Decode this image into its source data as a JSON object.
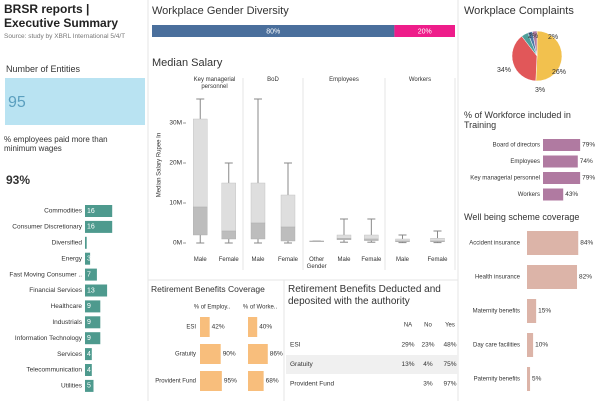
{
  "header": {
    "title": "BRSR reports | Executive Summary",
    "subtitle": "Source: study by XBRL International 5/4/T"
  },
  "gender": {
    "title": "Workplace Gender Diversity",
    "segments": [
      {
        "value": 80,
        "label": "80%",
        "color": "#4a6f9c"
      },
      {
        "value": 20,
        "label": "20%",
        "color": "#ee1d8a"
      }
    ]
  },
  "complaints": {
    "title": "Workplace Complaints",
    "slices": [
      {
        "value": 34,
        "label": "34%",
        "color": "#f2c14e"
      },
      {
        "value": 26,
        "label": "26%",
        "color": "#e15759"
      },
      {
        "value": 3,
        "label": "3%",
        "color": "#4e9f9a"
      },
      {
        "value": 2,
        "label": "2%",
        "color": "#4e79a7"
      },
      {
        "value": 2,
        "label": "2%",
        "color": "#b07aa1"
      }
    ]
  },
  "entities": {
    "title": "Number of Entities",
    "value": 95
  },
  "wages": {
    "title": "% employees paid more than minimum wages",
    "value": 93,
    "label": "93%"
  },
  "sectors": {
    "color": "#4e9a8e",
    "items": [
      {
        "name": "Commodities",
        "value": 16
      },
      {
        "name": "Consumer Discretionary",
        "value": 16
      },
      {
        "name": "Diversified",
        "value": 1
      },
      {
        "name": "Energy",
        "value": 3
      },
      {
        "name": "Fast Moving Consumer ..",
        "value": 7
      },
      {
        "name": "Financial Services",
        "value": 13
      },
      {
        "name": "Healthcare",
        "value": 9
      },
      {
        "name": "Industrials",
        "value": 9
      },
      {
        "name": "Information Technology",
        "value": 9
      },
      {
        "name": "Services",
        "value": 4
      },
      {
        "name": "Telecommunication",
        "value": 4
      },
      {
        "name": "Utilities",
        "value": 5
      }
    ]
  },
  "salary": {
    "title": "Median Salary",
    "axis_label": "Median Salary Rupee In",
    "ylim": [
      -1,
      40
    ],
    "yticks": [
      {
        "value": 0,
        "label": "0M"
      },
      {
        "value": 10,
        "label": "10M"
      },
      {
        "value": 20,
        "label": "20M"
      },
      {
        "value": 30,
        "label": "30M"
      }
    ],
    "panels": [
      {
        "name": "Key managerial personnel",
        "groups": [
          {
            "name": "Male",
            "min": 0,
            "q1": 2,
            "median": 9,
            "q3": 31,
            "max": 36
          },
          {
            "name": "Female",
            "min": 0,
            "q1": 1,
            "median": 3,
            "q3": 15,
            "max": 20
          }
        ]
      },
      {
        "name": "BoD",
        "groups": [
          {
            "name": "Male",
            "min": 0,
            "q1": 1,
            "median": 5,
            "q3": 15,
            "max": 36
          },
          {
            "name": "Female",
            "min": 0,
            "q1": 0.5,
            "median": 4,
            "q3": 12,
            "max": 20
          }
        ]
      },
      {
        "name": "Employees",
        "groups": [
          {
            "name": "Other Gender",
            "min": 0.5,
            "q1": 0.5,
            "median": 0.5,
            "q3": 0.5,
            "max": 0.5
          },
          {
            "name": "Male",
            "min": 0.2,
            "q1": 0.8,
            "median": 1.2,
            "q3": 2,
            "max": 6
          },
          {
            "name": "Female",
            "min": 0.2,
            "q1": 0.6,
            "median": 1,
            "q3": 2,
            "max": 6
          }
        ]
      },
      {
        "name": "Workers",
        "groups": [
          {
            "name": "Male",
            "min": 0.1,
            "q1": 0.3,
            "median": 0.5,
            "q3": 1,
            "max": 2
          },
          {
            "name": "Female",
            "min": 0.1,
            "q1": 0.3,
            "median": 0.5,
            "q3": 1.2,
            "max": 3
          }
        ]
      }
    ]
  },
  "training": {
    "title": "% of Workforce included in Training",
    "color": "#b07aa1",
    "items": [
      {
        "name": "Board of directors",
        "value": 79,
        "label": "79%"
      },
      {
        "name": "Employees",
        "value": 74,
        "label": "74%"
      },
      {
        "name": "Key managerial personnel",
        "value": 79,
        "label": "79%"
      },
      {
        "name": "Workers",
        "value": 43,
        "label": "43%"
      }
    ]
  },
  "wellbeing": {
    "title": "Well being scheme coverage",
    "color": "#dcb4a8",
    "items": [
      {
        "name": "Accident insurance",
        "value": 84,
        "label": "84%"
      },
      {
        "name": "Health insurance",
        "value": 82,
        "label": "82%"
      },
      {
        "name": "Maternity benefits",
        "value": 15,
        "label": "15%"
      },
      {
        "name": "Day care facilities",
        "value": 10,
        "label": "10%"
      },
      {
        "name": "Paternity benefits",
        "value": 5,
        "label": "5%"
      }
    ]
  },
  "retirement_coverage": {
    "title": "Retirement Benefits Coverage",
    "color": "#f8be7c",
    "columns": [
      "% of Employ..",
      "% of Worke.."
    ],
    "rows": [
      {
        "name": "ESI",
        "values": [
          42,
          40
        ],
        "labels": [
          "42%",
          "40%"
        ]
      },
      {
        "name": "Gratuity",
        "values": [
          90,
          86
        ],
        "labels": [
          "90%",
          "86%"
        ]
      },
      {
        "name": "Provident Fund",
        "values": [
          95,
          68
        ],
        "labels": [
          "95%",
          "68%"
        ]
      }
    ]
  },
  "retirement_deducted": {
    "title": "Retirement Benefits Deducted and deposited with the authority",
    "columns": [
      "NA",
      "No",
      "Yes"
    ],
    "rows": [
      {
        "name": "ESI",
        "cells": [
          "29%",
          "23%",
          "48%"
        ]
      },
      {
        "name": "Gratuity",
        "cells": [
          "13%",
          "4%",
          "75%"
        ]
      },
      {
        "name": "Provident Fund",
        "cells": [
          null,
          "3%",
          "97%"
        ]
      }
    ]
  }
}
